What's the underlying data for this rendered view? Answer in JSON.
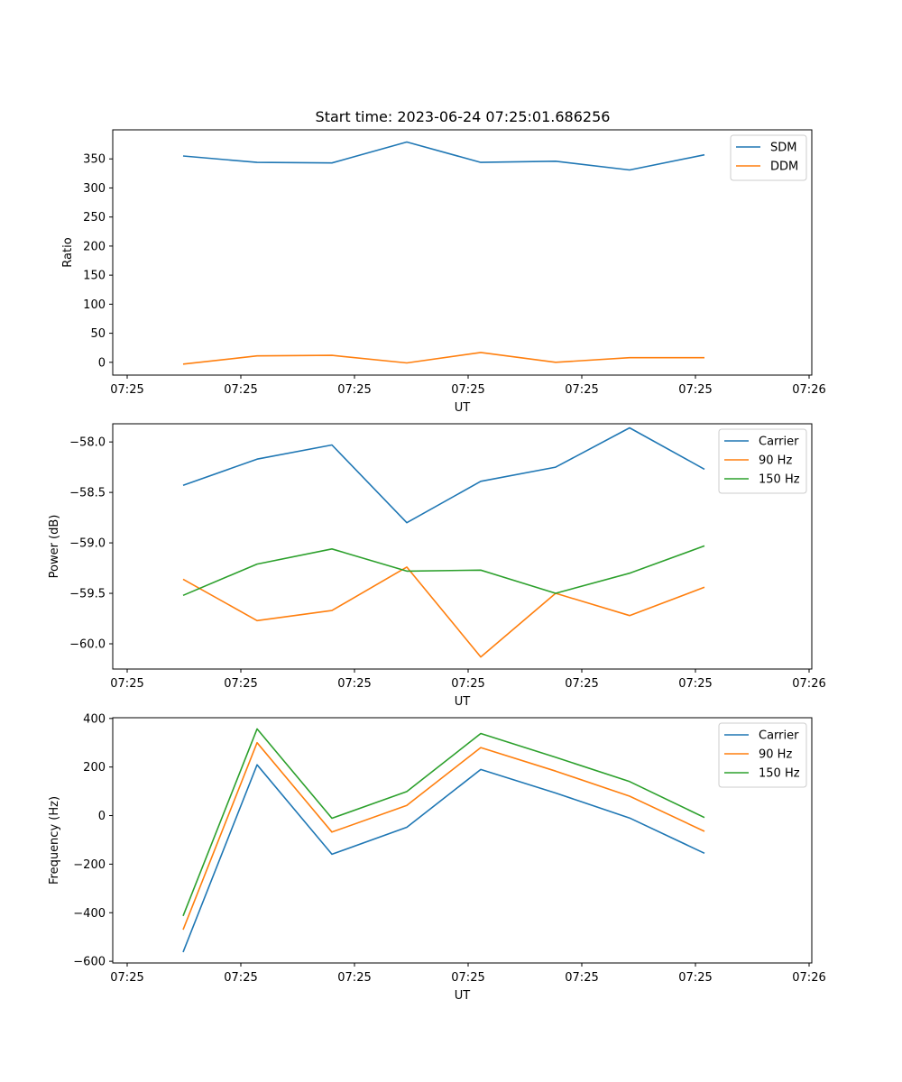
{
  "title": "Start time: 2023-06-24 07:25:01.686256",
  "chart_data": [
    {
      "type": "line",
      "xlabel": "UT",
      "ylabel": "Ratio",
      "x_tick_labels": [
        "07:25",
        "07:25",
        "07:25",
        "07:25",
        "07:25",
        "07:25",
        "07:25",
        "07:26"
      ],
      "y_ticks": [
        0,
        50,
        100,
        150,
        200,
        250,
        300,
        350
      ],
      "ylim": [
        -22,
        400
      ],
      "legend": "top-right",
      "series": [
        {
          "name": "SDM",
          "color": "#1f77b4",
          "values": [
            355,
            344,
            343,
            379,
            344,
            346,
            331,
            357
          ]
        },
        {
          "name": "DDM",
          "color": "#ff7f0e",
          "values": [
            -3,
            11,
            12,
            -1,
            17,
            0,
            8,
            8
          ]
        }
      ]
    },
    {
      "type": "line",
      "xlabel": "UT",
      "ylabel": "Power (dB)",
      "x_tick_labels": [
        "07:25",
        "07:25",
        "07:25",
        "07:25",
        "07:25",
        "07:25",
        "07:25",
        "07:26"
      ],
      "y_ticks": [
        -60.0,
        -59.5,
        -59.0,
        -58.5,
        -58.0
      ],
      "y_tick_labels": [
        "−60.0",
        "−59.5",
        "−59.0",
        "−58.5",
        "−58.0"
      ],
      "ylim": [
        -60.25,
        -57.82
      ],
      "legend": "top-right",
      "series": [
        {
          "name": "Carrier",
          "color": "#1f77b4",
          "values": [
            -58.43,
            -58.17,
            -58.03,
            -58.8,
            -58.39,
            -58.25,
            -57.86,
            -58.27
          ]
        },
        {
          "name": "90 Hz",
          "color": "#ff7f0e",
          "values": [
            -59.36,
            -59.77,
            -59.67,
            -59.24,
            -60.13,
            -59.5,
            -59.72,
            -59.44
          ]
        },
        {
          "name": "150 Hz",
          "color": "#2ca02c",
          "values": [
            -59.52,
            -59.21,
            -59.06,
            -59.28,
            -59.27,
            -59.5,
            -59.3,
            -59.03
          ]
        }
      ]
    },
    {
      "type": "line",
      "xlabel": "UT",
      "ylabel": "Frequency (Hz)",
      "x_tick_labels": [
        "07:25",
        "07:25",
        "07:25",
        "07:25",
        "07:25",
        "07:25",
        "07:25",
        "07:26"
      ],
      "y_ticks": [
        -600,
        -400,
        -200,
        0,
        200,
        400
      ],
      "y_tick_labels": [
        "−600",
        "−400",
        "−200",
        "0",
        "200",
        "400"
      ],
      "ylim": [
        -607,
        403
      ],
      "legend": "top-right",
      "series": [
        {
          "name": "Carrier",
          "color": "#1f77b4",
          "values": [
            -562,
            209,
            -159,
            -48,
            190,
            93,
            -10,
            -155
          ]
        },
        {
          "name": "90 Hz",
          "color": "#ff7f0e",
          "values": [
            -470,
            300,
            -68,
            42,
            280,
            183,
            80,
            -65
          ]
        },
        {
          "name": "150 Hz",
          "color": "#2ca02c",
          "values": [
            -413,
            357,
            -11,
            99,
            338,
            240,
            140,
            -8
          ]
        }
      ]
    }
  ]
}
